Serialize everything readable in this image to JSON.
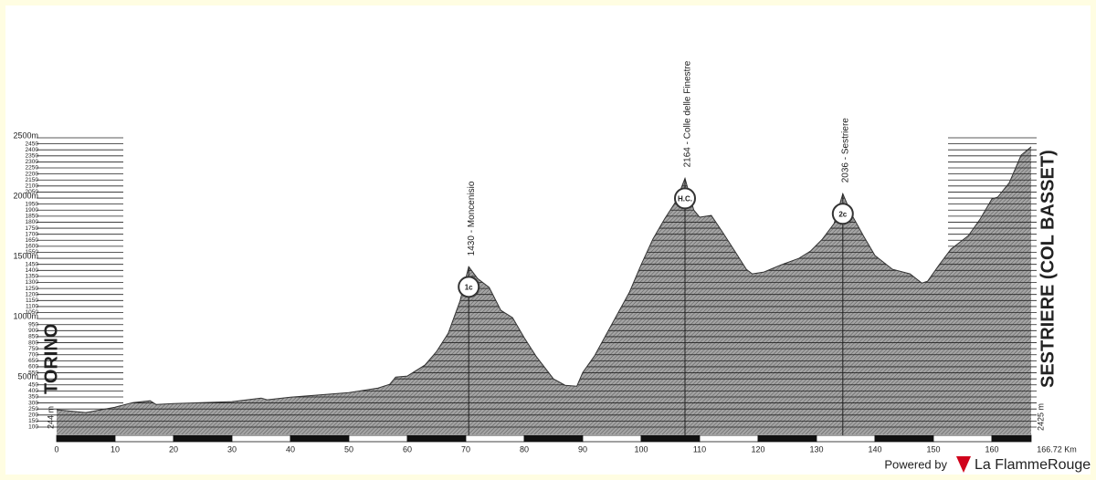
{
  "chart_data": {
    "type": "area",
    "start": {
      "name": "TORINO",
      "altitude": "244 m"
    },
    "finish": {
      "name": "SESTRIERE (COL BASSET)",
      "altitude": "2425 m"
    },
    "x": [
      0,
      5,
      10,
      13,
      16,
      17,
      20,
      30,
      35,
      36,
      40,
      50,
      55,
      57,
      58,
      60,
      63,
      65,
      67,
      69,
      70.5,
      72,
      74,
      76,
      78,
      80,
      82,
      85,
      87,
      89,
      90,
      92,
      95,
      98,
      100,
      102,
      104,
      106,
      107.5,
      109,
      110,
      112,
      114,
      116,
      118,
      119,
      121,
      124,
      127,
      129,
      131,
      133,
      134.5,
      136,
      138,
      140,
      143,
      146,
      148,
      149,
      151,
      153,
      156,
      158,
      160,
      161,
      163,
      165,
      166.72
    ],
    "values": [
      244,
      220,
      265,
      303,
      318,
      288,
      295,
      311,
      341,
      326,
      348,
      386,
      424,
      455,
      515,
      523,
      614,
      727,
      879,
      1144,
      1430,
      1333,
      1258,
      1068,
      1008,
      841,
      689,
      500,
      447,
      439,
      553,
      689,
      955,
      1220,
      1447,
      1659,
      1826,
      1977,
      2164,
      1901,
      1841,
      1856,
      1712,
      1561,
      1409,
      1371,
      1386,
      1447,
      1500,
      1561,
      1659,
      1788,
      2036,
      1864,
      1689,
      1523,
      1409,
      1371,
      1295,
      1310,
      1447,
      1576,
      1689,
      1826,
      1992,
      2008,
      2129,
      2356,
      2425
    ],
    "color": "#9a9a9a",
    "climbs": [
      {
        "label": "1430 - Moncenisio",
        "category": "1c",
        "km": 70.5
      },
      {
        "label": "2164 - Colle delle Finestre",
        "category": "H.C.",
        "km": 107.5
      },
      {
        "label": "2036 - Sestriere",
        "category": "2c",
        "km": 134.5
      }
    ],
    "xlim": [
      0,
      166.72
    ],
    "xticks": [
      0,
      10,
      20,
      30,
      40,
      50,
      60,
      70,
      80,
      90,
      100,
      110,
      120,
      130,
      140,
      150,
      160,
      {
        "value": 166.72,
        "label": "166.72 Km"
      }
    ],
    "ylim": [
      100,
      2500
    ],
    "yticks": [
      100,
      150,
      200,
      250,
      300,
      350,
      400,
      450,
      {
        "value": 500,
        "label": "500m"
      },
      550,
      600,
      650,
      700,
      750,
      800,
      850,
      900,
      950,
      {
        "value": 1000,
        "label": "1000m"
      },
      1050,
      1100,
      1150,
      1200,
      1250,
      1300,
      1350,
      1400,
      1450,
      {
        "value": 1500,
        "label": "1500m"
      },
      1550,
      1600,
      1650,
      1700,
      1750,
      1800,
      1850,
      1900,
      1950,
      {
        "value": 2000,
        "label": "2000m"
      },
      2050,
      2100,
      2150,
      2200,
      2250,
      2300,
      2350,
      2400,
      2450,
      {
        "value": 2500,
        "label": "2500m"
      }
    ],
    "grid": true,
    "footer": {
      "powered": "Powered by",
      "brand": "La FlammeRouge"
    }
  }
}
